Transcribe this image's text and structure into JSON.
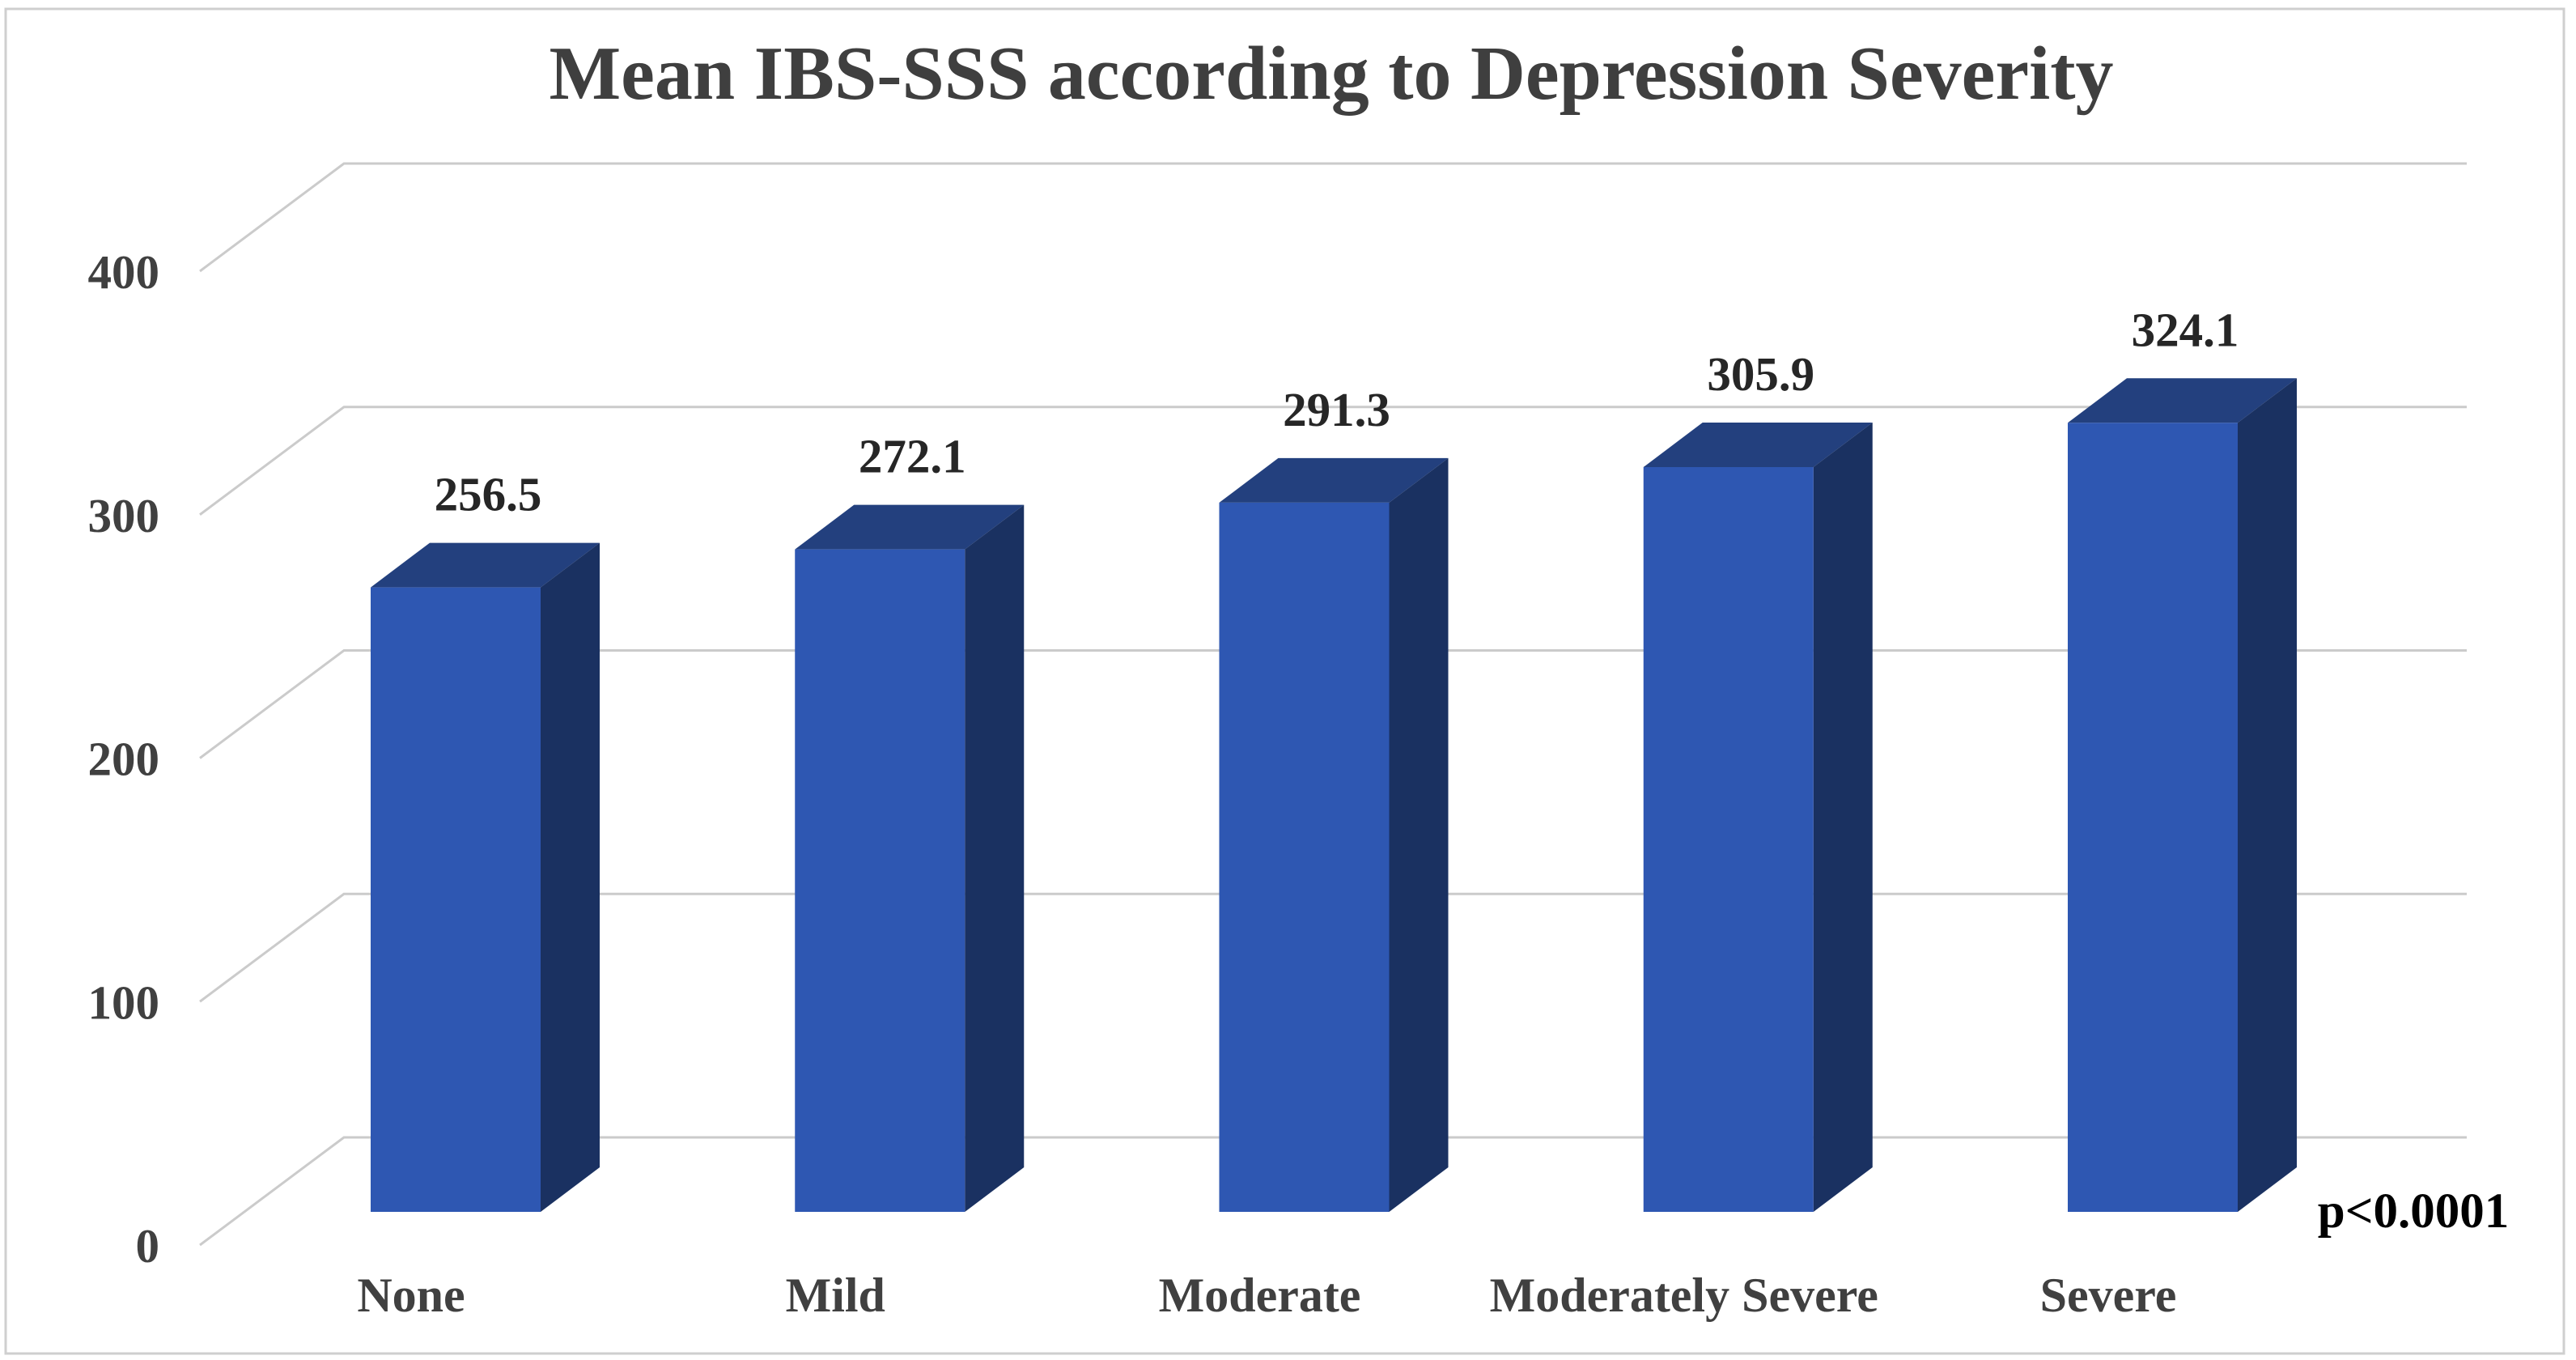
{
  "title": "Mean IBS-SSS according to Depression Severity",
  "p_annotation": "p<0.0001",
  "chart_data": {
    "type": "bar",
    "variant": "3d-column",
    "title": "Mean IBS-SSS according to Depression Severity",
    "categories": [
      "None",
      "Mild",
      "Moderate",
      "Moderately Severe",
      "Severe"
    ],
    "values": [
      256.5,
      272.1,
      291.3,
      305.9,
      324.1
    ],
    "data_labels": [
      "256.5",
      "272.1",
      "291.3",
      "305.9",
      "324.1"
    ],
    "xlabel": "",
    "ylabel": "",
    "y_ticks": [
      0,
      100,
      200,
      300,
      400
    ],
    "y_tick_labels": [
      "0",
      "100",
      "200",
      "300",
      "400"
    ],
    "ylim": [
      0,
      400
    ],
    "grid": true,
    "legend": "none",
    "annotation": "p<0.0001",
    "colors": {
      "bar_front": "#2E57B2",
      "bar_top": "#23407E",
      "bar_side": "#1A3161",
      "gridline": "#CBCBCB",
      "axis_text": "#404040",
      "title_text": "#3F3F3F",
      "data_label_text": "#262626",
      "annotation_text": "#000000",
      "background": "#FFFFFF",
      "border": "#CFCFCF"
    }
  }
}
